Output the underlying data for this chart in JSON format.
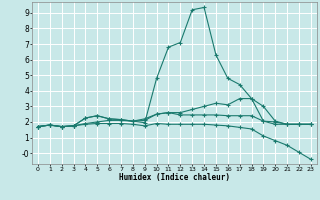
{
  "xlabel": "Humidex (Indice chaleur)",
  "bg_color": "#c8e8e8",
  "grid_color": "#ffffff",
  "line_color": "#1a7a6e",
  "marker": "+",
  "xlim": [
    -0.5,
    23.5
  ],
  "ylim": [
    -0.7,
    9.7
  ],
  "xticks": [
    0,
    1,
    2,
    3,
    4,
    5,
    6,
    7,
    8,
    9,
    10,
    11,
    12,
    13,
    14,
    15,
    16,
    17,
    18,
    19,
    20,
    21,
    22,
    23
  ],
  "yticks": [
    0,
    1,
    2,
    3,
    4,
    5,
    6,
    7,
    8,
    9
  ],
  "ytick_labels": [
    "-0",
    "1",
    "2",
    "3",
    "4",
    "5",
    "6",
    "7",
    "8",
    "9"
  ],
  "line1_x": [
    0,
    1,
    2,
    3,
    4,
    5,
    6,
    7,
    8,
    9,
    10,
    11,
    12,
    13,
    14,
    15,
    16,
    17,
    18,
    19,
    20,
    21,
    22,
    23
  ],
  "line1_y": [
    1.7,
    1.8,
    1.7,
    1.75,
    2.25,
    2.4,
    2.2,
    2.15,
    2.05,
    2.1,
    2.5,
    2.6,
    2.45,
    2.45,
    2.45,
    2.45,
    2.4,
    2.4,
    2.4,
    2.05,
    2.0,
    1.85,
    1.85,
    1.85
  ],
  "line2_x": [
    0,
    1,
    2,
    3,
    4,
    5,
    6,
    7,
    8,
    9,
    10,
    11,
    12,
    13,
    14,
    15,
    16,
    17,
    18,
    19,
    20,
    21,
    22,
    23
  ],
  "line2_y": [
    1.7,
    1.8,
    1.7,
    1.75,
    1.9,
    2.0,
    2.1,
    2.1,
    2.05,
    1.95,
    4.8,
    6.8,
    7.1,
    9.2,
    9.35,
    6.3,
    4.8,
    4.4,
    3.5,
    2.05,
    1.85,
    1.85,
    1.85,
    1.85
  ],
  "line3_x": [
    0,
    1,
    2,
    3,
    4,
    5,
    6,
    7,
    8,
    9,
    10,
    11,
    12,
    13,
    14,
    15,
    16,
    17,
    18,
    19,
    20,
    21,
    22,
    23
  ],
  "line3_y": [
    1.7,
    1.8,
    1.7,
    1.75,
    1.85,
    1.9,
    1.9,
    1.9,
    1.85,
    1.75,
    1.9,
    1.85,
    1.85,
    1.85,
    1.85,
    1.8,
    1.75,
    1.65,
    1.55,
    1.1,
    0.8,
    0.5,
    0.05,
    -0.4
  ],
  "line4_x": [
    0,
    1,
    2,
    3,
    4,
    5,
    6,
    7,
    8,
    9,
    10,
    11,
    12,
    13,
    14,
    15,
    16,
    17,
    18,
    19,
    20,
    21,
    22,
    23
  ],
  "line4_y": [
    1.7,
    1.8,
    1.7,
    1.75,
    2.25,
    2.4,
    2.2,
    2.15,
    2.05,
    2.2,
    2.5,
    2.6,
    2.6,
    2.8,
    3.0,
    3.2,
    3.1,
    3.5,
    3.5,
    3.0,
    2.05,
    1.85,
    1.85,
    1.85
  ]
}
